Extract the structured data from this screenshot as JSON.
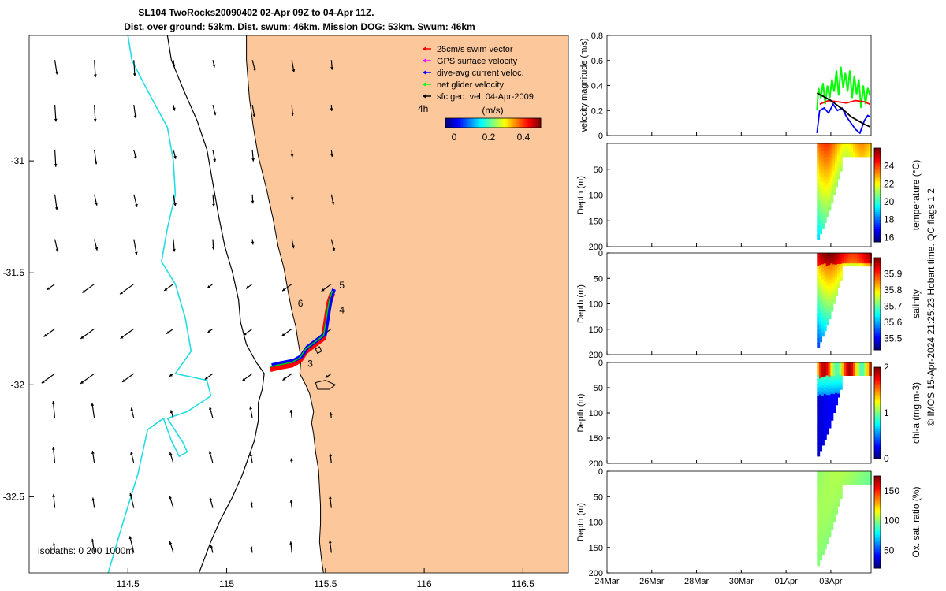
{
  "title_line1": "SL104 TwoRocks20090402 02-Apr 09Z to 04-Apr 11Z.",
  "title_line2": "Dist. over ground: 53km. Dist. swum: 46km. Mission DOG: 53km. Swum: 46km",
  "credit": "© IMOS 15-Apr-2024 21:25:23 Hobart time. QC flags 1  2",
  "chart_data": [
    {
      "type": "map",
      "xlim": [
        114.0,
        116.73
      ],
      "ylim": [
        -32.84,
        -30.44
      ],
      "x_ticks": [
        114.5,
        115,
        115.5,
        116,
        116.5
      ],
      "x_tick_labels": [
        "114.5",
        "115",
        "115.5",
        "116",
        "116.5"
      ],
      "y_ticks": [
        -31,
        -31.5,
        -32,
        -32.5
      ],
      "y_tick_labels": [
        "-31",
        "-31.5",
        "-32",
        "-32.5"
      ],
      "legend": {
        "placement": "top-right",
        "entries": [
          {
            "label": "25cm/s swim vector",
            "color": "#ff0000"
          },
          {
            "label": "GPS surface velocity",
            "color": "#ff00ff"
          },
          {
            "label": "dive-avg current veloc.",
            "color": "#0000ff"
          },
          {
            "label": "net glider velocity",
            "color": "#00ff00"
          },
          {
            "label": "sfc geo. vel. 04-Apr-2009",
            "color": "#000000"
          }
        ],
        "time_label": "4h"
      },
      "colorbar": {
        "label": "(m/s)",
        "ticks": [
          0,
          0.2,
          0.4
        ],
        "tick_labels": [
          "0",
          "0.2",
          "0.4"
        ],
        "range": [
          -0.05,
          0.5
        ],
        "colormap": "jet"
      },
      "isobath_label": "isobaths: 0   200  1000m",
      "day_labels": [
        {
          "text": "3",
          "lon": 115.41,
          "lat": -31.92
        },
        {
          "text": "4",
          "lon": 115.57,
          "lat": -31.68
        },
        {
          "text": "5",
          "lon": 115.57,
          "lat": -31.57
        },
        {
          "text": "6",
          "lon": 115.36,
          "lat": -31.65
        }
      ],
      "coastline": [
        [
          115.1,
          -30.44
        ],
        [
          115.1,
          -30.55
        ],
        [
          115.115,
          -30.72
        ],
        [
          115.135,
          -30.85
        ],
        [
          115.16,
          -30.98
        ],
        [
          115.2,
          -31.12
        ],
        [
          115.235,
          -31.26
        ],
        [
          115.26,
          -31.38
        ],
        [
          115.29,
          -31.48
        ],
        [
          115.31,
          -31.58
        ],
        [
          115.33,
          -31.67
        ],
        [
          115.35,
          -31.74
        ],
        [
          115.36,
          -31.8
        ],
        [
          115.37,
          -31.85
        ],
        [
          115.375,
          -31.9
        ],
        [
          115.37,
          -31.95
        ],
        [
          115.4,
          -32.0
        ],
        [
          115.42,
          -32.04
        ],
        [
          115.43,
          -32.08
        ],
        [
          115.44,
          -32.12
        ],
        [
          115.43,
          -32.17
        ],
        [
          115.44,
          -32.22
        ],
        [
          115.45,
          -32.3
        ],
        [
          115.465,
          -32.38
        ],
        [
          115.47,
          -32.46
        ],
        [
          115.475,
          -32.54
        ],
        [
          115.475,
          -32.62
        ],
        [
          115.47,
          -32.7
        ],
        [
          115.48,
          -32.78
        ],
        [
          115.49,
          -32.84
        ]
      ],
      "isobath_200": [
        [
          114.7,
          -30.44
        ],
        [
          114.72,
          -30.55
        ],
        [
          114.78,
          -30.68
        ],
        [
          114.85,
          -30.82
        ],
        [
          114.9,
          -30.95
        ],
        [
          114.93,
          -31.1
        ],
        [
          114.96,
          -31.25
        ],
        [
          114.99,
          -31.38
        ],
        [
          115.03,
          -31.5
        ],
        [
          115.06,
          -31.62
        ],
        [
          115.07,
          -31.72
        ],
        [
          115.1,
          -31.82
        ],
        [
          115.15,
          -31.9
        ],
        [
          115.19,
          -31.95
        ],
        [
          115.18,
          -32.02
        ],
        [
          115.16,
          -32.08
        ],
        [
          115.16,
          -32.16
        ],
        [
          115.14,
          -32.25
        ],
        [
          115.08,
          -32.4
        ],
        [
          115.03,
          -32.5
        ],
        [
          114.97,
          -32.6
        ],
        [
          114.92,
          -32.7
        ],
        [
          114.86,
          -32.84
        ]
      ],
      "isobath_1000": [
        [
          114.5,
          -30.44
        ],
        [
          114.52,
          -30.55
        ],
        [
          114.56,
          -30.62
        ],
        [
          114.62,
          -30.72
        ],
        [
          114.7,
          -30.85
        ],
        [
          114.73,
          -31.0
        ],
        [
          114.74,
          -31.15
        ],
        [
          114.7,
          -31.3
        ],
        [
          114.67,
          -31.45
        ],
        [
          114.74,
          -31.55
        ],
        [
          114.79,
          -31.7
        ],
        [
          114.82,
          -31.85
        ],
        [
          114.74,
          -31.95
        ],
        [
          114.9,
          -31.98
        ],
        [
          114.92,
          -32.05
        ],
        [
          114.8,
          -32.12
        ],
        [
          114.7,
          -32.15
        ],
        [
          114.78,
          -32.26
        ],
        [
          114.8,
          -32.3
        ],
        [
          114.76,
          -32.32
        ],
        [
          114.72,
          -32.25
        ],
        [
          114.68,
          -32.15
        ],
        [
          114.6,
          -32.2
        ],
        [
          114.55,
          -32.4
        ],
        [
          114.48,
          -32.6
        ],
        [
          114.4,
          -32.84
        ]
      ],
      "islands": [
        [
          [
            115.45,
            -31.99
          ],
          [
            115.5,
            -31.98
          ],
          [
            115.55,
            -32.0
          ],
          [
            115.52,
            -32.02
          ],
          [
            115.46,
            -32.02
          ]
        ],
        [
          [
            115.45,
            -31.84
          ],
          [
            115.47,
            -31.83
          ],
          [
            115.48,
            -31.85
          ],
          [
            115.46,
            -31.86
          ]
        ]
      ],
      "glider_track": [
        [
          115.22,
          -31.92
        ],
        [
          115.27,
          -31.91
        ],
        [
          115.33,
          -31.9
        ],
        [
          115.37,
          -31.88
        ],
        [
          115.4,
          -31.84
        ],
        [
          115.43,
          -31.82
        ],
        [
          115.46,
          -31.8
        ],
        [
          115.49,
          -31.78
        ],
        [
          115.5,
          -31.73
        ],
        [
          115.51,
          -31.67
        ],
        [
          115.52,
          -31.62
        ],
        [
          115.535,
          -31.58
        ]
      ],
      "grid_lons": [
        114.0,
        114.2,
        114.4,
        114.6,
        114.8,
        115.0,
        115.2,
        115.4
      ],
      "grid_lats": [
        -30.55,
        -30.75,
        -30.95,
        -31.15,
        -31.35,
        -31.55,
        -31.75,
        -31.95,
        -32.15,
        -32.35,
        -32.55,
        -32.75
      ]
    },
    {
      "type": "line",
      "ylabel": "velocity magnitude (m/s)",
      "xlim": [
        0,
        11.8
      ],
      "ylim": [
        0,
        0.8
      ],
      "y_ticks": [
        0,
        0.2,
        0.4,
        0.6,
        0.8
      ],
      "y_tick_labels": [
        "0",
        "0.2",
        "0.4",
        "0.6",
        "0.8"
      ],
      "series": [
        {
          "color": "#00ff00",
          "x": [
            9.38,
            9.45,
            9.55,
            9.65,
            9.75,
            9.85,
            9.95,
            10.05,
            10.15,
            10.25,
            10.35,
            10.45,
            10.55,
            10.65,
            10.75,
            10.85,
            10.95,
            11.05,
            11.15,
            11.25,
            11.35,
            11.45,
            11.55,
            11.65,
            11.75
          ],
          "y": [
            0.2,
            0.38,
            0.3,
            0.42,
            0.25,
            0.4,
            0.3,
            0.45,
            0.35,
            0.52,
            0.32,
            0.55,
            0.38,
            0.5,
            0.35,
            0.52,
            0.3,
            0.48,
            0.33,
            0.45,
            0.22,
            0.4,
            0.25,
            0.38,
            0.32
          ]
        },
        {
          "color": "#ff0000",
          "x": [
            9.5,
            9.9,
            10.3,
            10.7,
            11.1,
            11.5,
            11.75
          ],
          "y": [
            0.25,
            0.28,
            0.27,
            0.26,
            0.28,
            0.27,
            0.25
          ]
        },
        {
          "color": "#0000ff",
          "x": [
            9.38,
            9.5,
            9.7,
            9.9,
            10.1,
            10.3,
            10.5,
            10.7,
            10.9,
            11.1,
            11.3,
            11.5,
            11.65,
            11.75
          ],
          "y": [
            0.02,
            0.2,
            0.22,
            0.18,
            0.25,
            0.2,
            0.22,
            0.15,
            0.1,
            0.05,
            0.02,
            0.12,
            0.16,
            0.15
          ]
        },
        {
          "color": "#000000",
          "x": [
            9.38,
            9.7,
            10.0,
            10.3,
            10.6,
            10.9,
            11.2,
            11.5,
            11.75
          ],
          "y": [
            0.34,
            0.31,
            0.28,
            0.24,
            0.2,
            0.15,
            0.12,
            0.09,
            0.07
          ]
        }
      ]
    },
    {
      "type": "heatmap",
      "ylabel": "Depth (m)",
      "colorbar_label": "temperature (°C)",
      "ylim": [
        0,
        200
      ],
      "y_ticks": [
        50,
        100,
        150,
        200
      ],
      "y_tick_labels": [
        "50",
        "100",
        "150",
        "200"
      ],
      "cbar_ticks": [
        16,
        18,
        20,
        22,
        24
      ],
      "cbar_tick_labels": [
        "16",
        "18",
        "20",
        "22",
        "24"
      ],
      "cbar_range": [
        15.5,
        26
      ]
    },
    {
      "type": "heatmap",
      "ylabel": "Depth (m)",
      "colorbar_label": "salinity",
      "ylim": [
        0,
        200
      ],
      "y_ticks": [
        0,
        50,
        100,
        150,
        200
      ],
      "y_tick_labels": [
        "0",
        "50",
        "100",
        "150",
        "200"
      ],
      "cbar_ticks": [
        35.5,
        35.6,
        35.7,
        35.8,
        35.9
      ],
      "cbar_tick_labels": [
        "35.5",
        "35.6",
        "35.7",
        "35.8",
        "35.9"
      ],
      "cbar_range": [
        35.43,
        36.0
      ]
    },
    {
      "type": "heatmap",
      "ylabel": "Depth (m)",
      "colorbar_label": "chl-a (mg m-3)",
      "ylim": [
        0,
        200
      ],
      "y_ticks": [
        0,
        50,
        100,
        150,
        200
      ],
      "y_tick_labels": [
        "0",
        "50",
        "100",
        "150",
        "200"
      ],
      "cbar_ticks": [
        0,
        1,
        2
      ],
      "cbar_tick_labels": [
        "0",
        "1",
        "2"
      ],
      "cbar_range": [
        0,
        2
      ]
    },
    {
      "type": "heatmap",
      "ylabel": "Depth (m)",
      "colorbar_label": "Ox. sat. ratio (%)",
      "ylim": [
        0,
        200
      ],
      "y_ticks": [
        0,
        50,
        100,
        150,
        200
      ],
      "y_tick_labels": [
        "0",
        "50",
        "100",
        "150",
        "200"
      ],
      "cbar_ticks": [
        50,
        100,
        150
      ],
      "cbar_tick_labels": [
        "50",
        "100",
        "150"
      ],
      "cbar_range": [
        20,
        175
      ],
      "x_ticks": [
        0,
        2,
        4,
        6,
        8,
        10
      ],
      "x_tick_labels": [
        "24Mar",
        "26Mar",
        "28Mar",
        "30Mar",
        "01Apr",
        "03Apr"
      ]
    }
  ]
}
